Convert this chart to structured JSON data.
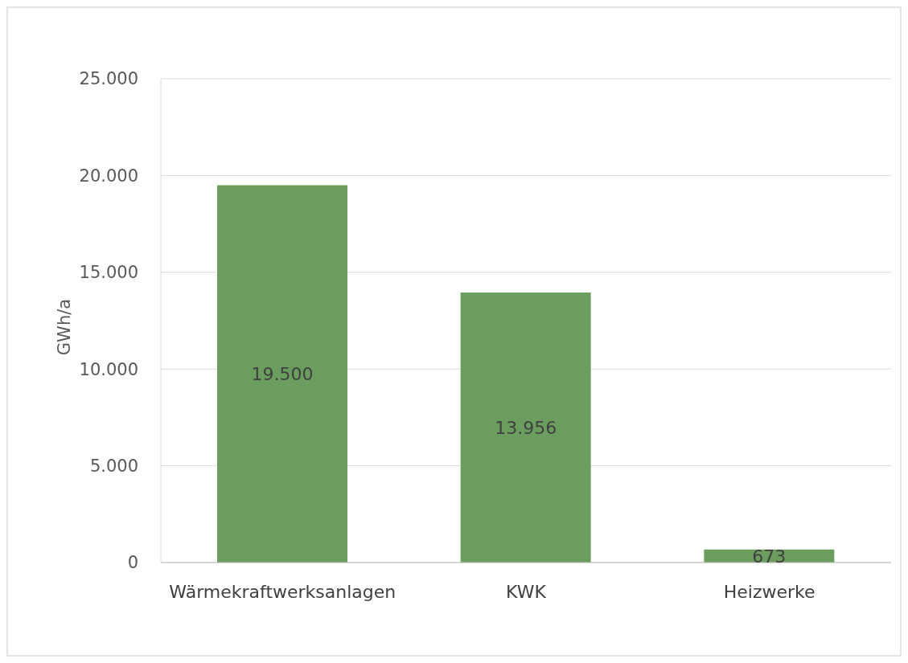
{
  "chart_data": {
    "type": "bar",
    "ylabel": "GWh/a",
    "categories": [
      "Wärmekraftwerksanlagen",
      "KWK",
      "Heizwerke"
    ],
    "values": [
      19500,
      13956,
      673
    ],
    "value_labels": [
      "19.500",
      "13.956",
      "673"
    ],
    "color": "#6b9e5e",
    "ylim": [
      0,
      25000
    ],
    "yticks": [
      {
        "value": 0,
        "label": "0"
      },
      {
        "value": 5000,
        "label": "5.000"
      },
      {
        "value": 10000,
        "label": "10.000"
      },
      {
        "value": 15000,
        "label": "15.000"
      },
      {
        "value": 20000,
        "label": "20.000"
      },
      {
        "value": 25000,
        "label": "25.000"
      }
    ],
    "grid": "y"
  }
}
